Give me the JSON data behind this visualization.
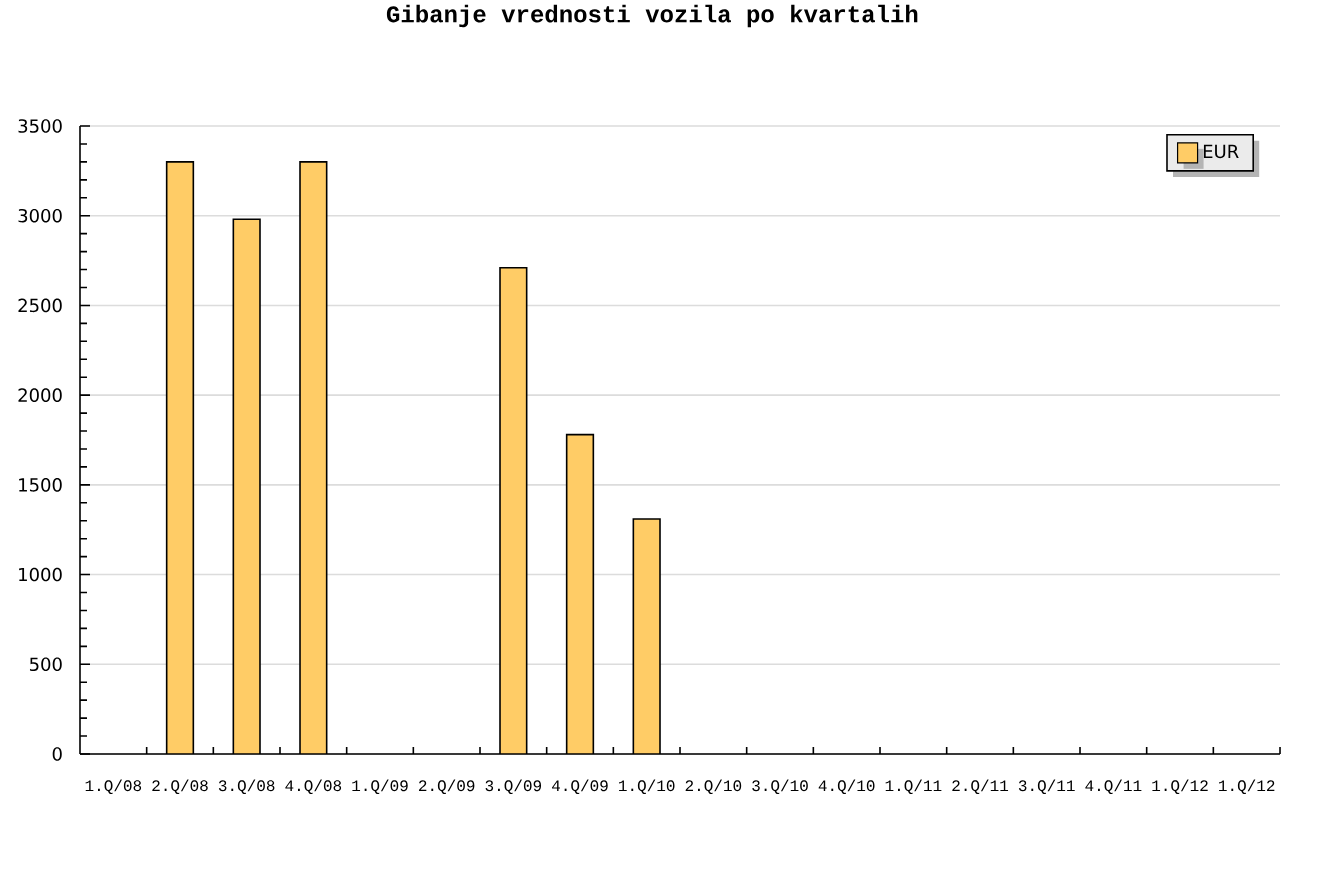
{
  "chart_data": {
    "type": "bar",
    "title": "Gibanje vrednosti vozila po kvartalih",
    "categories": [
      "1.Q/08",
      "2.Q/08",
      "3.Q/08",
      "4.Q/08",
      "1.Q/09",
      "2.Q/09",
      "3.Q/09",
      "4.Q/09",
      "1.Q/10",
      "2.Q/10",
      "3.Q/10",
      "4.Q/10",
      "1.Q/11",
      "2.Q/11",
      "3.Q/11",
      "4.Q/11",
      "1.Q/12",
      "1.Q/12"
    ],
    "series": [
      {
        "name": "EUR",
        "color": "#ffcc66",
        "values": [
          null,
          3300,
          2980,
          3300,
          null,
          null,
          2710,
          1780,
          1310,
          null,
          null,
          null,
          null,
          null,
          null,
          null,
          null,
          null
        ]
      }
    ],
    "ylim": [
      0,
      3500
    ],
    "yticks": [
      0,
      500,
      1000,
      1500,
      2000,
      2500,
      3000,
      3500
    ],
    "grid": "y",
    "legend": "top right"
  }
}
